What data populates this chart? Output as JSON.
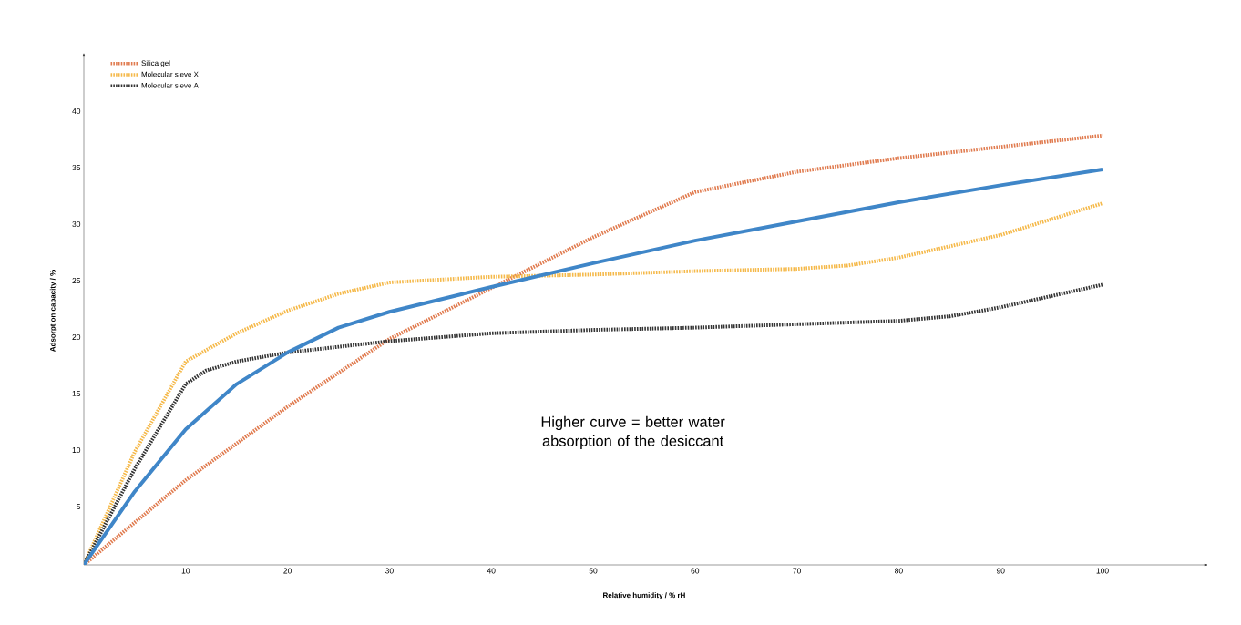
{
  "chart_data": {
    "type": "line",
    "xlabel": "Relative humidity / % rH",
    "ylabel": "Adsorption capacity / %",
    "xlim": [
      0,
      110
    ],
    "ylim": [
      0,
      45
    ],
    "xticks": [
      10,
      20,
      30,
      40,
      50,
      60,
      70,
      80,
      90,
      100
    ],
    "yticks": [
      5,
      10,
      15,
      20,
      25,
      30,
      35,
      40
    ],
    "legend": "top left",
    "marker": "none",
    "grid": false,
    "annotations": [
      "Higher curve = better water absorption of the desiccant"
    ],
    "series": [
      {
        "name": "Silica gel",
        "color": "#e07b4f",
        "line_style": "dotted",
        "x": [
          0,
          10,
          20,
          30,
          40,
          50,
          60,
          70,
          80,
          90,
          100
        ],
        "values": [
          0,
          7.5,
          14,
          20,
          24.5,
          29,
          33,
          34.8,
          36,
          37,
          38
        ]
      },
      {
        "name": "Molecular sieve X",
        "color": "#f5b94a",
        "line_style": "dotted",
        "x": [
          0,
          5,
          10,
          15,
          20,
          25,
          30,
          40,
          50,
          60,
          70,
          75,
          80,
          90,
          100
        ],
        "values": [
          0,
          10,
          18,
          20.5,
          22.5,
          24,
          25,
          25.5,
          25.7,
          26,
          26.2,
          26.5,
          27.2,
          29.2,
          32
        ]
      },
      {
        "name": "Molecular sieve A",
        "color": "#333333",
        "line_style": "dotted",
        "x": [
          0,
          5,
          10,
          12,
          15,
          20,
          30,
          40,
          50,
          60,
          70,
          80,
          85,
          90,
          100
        ],
        "values": [
          0,
          8.5,
          16,
          17.2,
          18,
          18.8,
          19.8,
          20.5,
          20.8,
          21,
          21.3,
          21.6,
          22,
          22.8,
          24.8
        ]
      },
      {
        "color": "#3f86c8",
        "line_style": "solid",
        "x": [
          0,
          5,
          10,
          15,
          20,
          25,
          30,
          40,
          50,
          60,
          70,
          80,
          90,
          100
        ],
        "values": [
          0,
          6.5,
          12,
          16,
          18.8,
          21,
          22.4,
          24.6,
          26.7,
          28.7,
          30.4,
          32.1,
          33.6,
          35
        ]
      }
    ]
  }
}
